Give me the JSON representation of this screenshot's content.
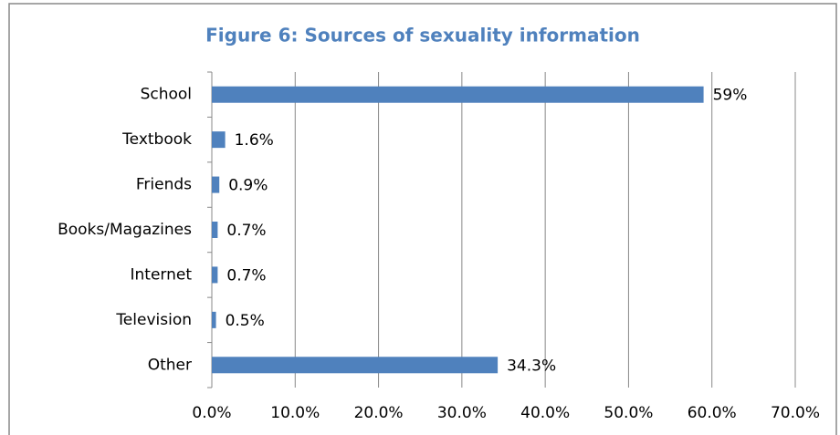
{
  "chart_data": {
    "type": "bar",
    "orientation": "horizontal",
    "title": "Figure 6: Sources of sexuality information",
    "categories": [
      "School",
      "Textbook",
      "Friends",
      "Books/Magazines",
      "Internet",
      "Television",
      "Other"
    ],
    "values": [
      59,
      1.6,
      0.9,
      0.7,
      0.7,
      0.5,
      34.3
    ],
    "value_labels": [
      "59%",
      "1.6%",
      "0.9%",
      "0.7%",
      "0.7%",
      "0.5%",
      "34.3%"
    ],
    "color": "#4f81bd",
    "xlim": [
      0,
      70
    ],
    "xticks": [
      {
        "value": 0,
        "label": "0.0%"
      },
      {
        "value": 10,
        "label": "10.0%"
      },
      {
        "value": 20,
        "label": "20.0%"
      },
      {
        "value": 30,
        "label": "30.0%"
      },
      {
        "value": 40,
        "label": "40.0%"
      },
      {
        "value": 50,
        "label": "50.0%"
      },
      {
        "value": 60,
        "label": "60.0%"
      },
      {
        "value": 70,
        "label": "70.0%"
      }
    ],
    "grid": true
  }
}
